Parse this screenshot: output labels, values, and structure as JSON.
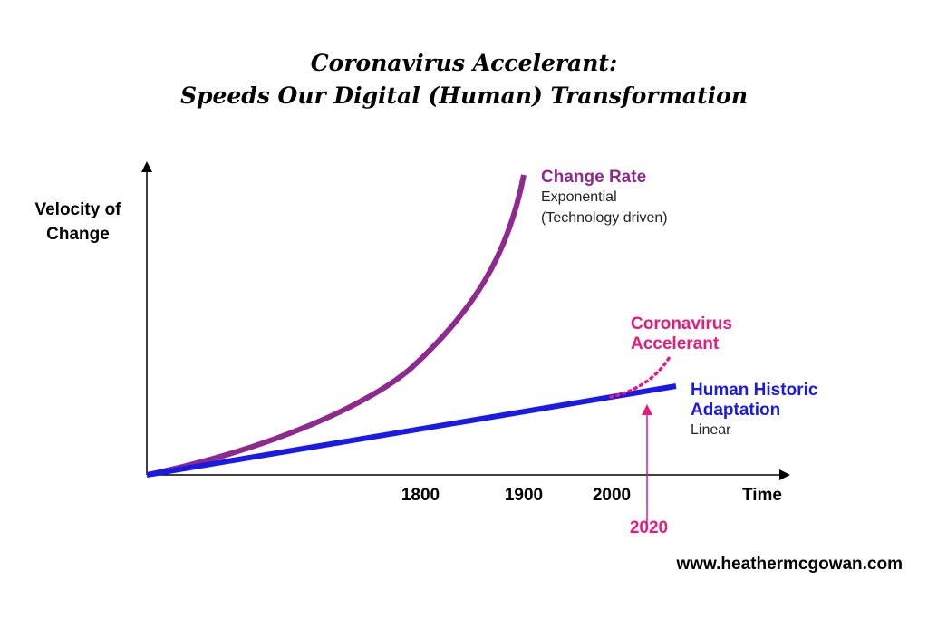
{
  "title": {
    "line1": "Coronavirus Accelerant:",
    "line2": "Speeds Our Digital (Human) Transformation"
  },
  "y_axis_label": {
    "line1": "Velocity of",
    "line2": "Change"
  },
  "x_axis_label": "Time",
  "x_ticks": [
    "1800",
    "1900",
    "2000"
  ],
  "highlight_year": "2020",
  "series": {
    "change_rate": {
      "title": "Change Rate",
      "line2": "Exponential",
      "line3": "(Technology driven)",
      "color": "#8e2a8e"
    },
    "human": {
      "title1": "Human Historic",
      "title2": "Adaptation",
      "line3": "Linear",
      "color": "#1a1ae6"
    },
    "accelerant": {
      "title1": "Coronavirus",
      "title2": "Accelerant",
      "color": "#e6197d"
    }
  },
  "footer_url": "www.heathermcgowan.com"
}
